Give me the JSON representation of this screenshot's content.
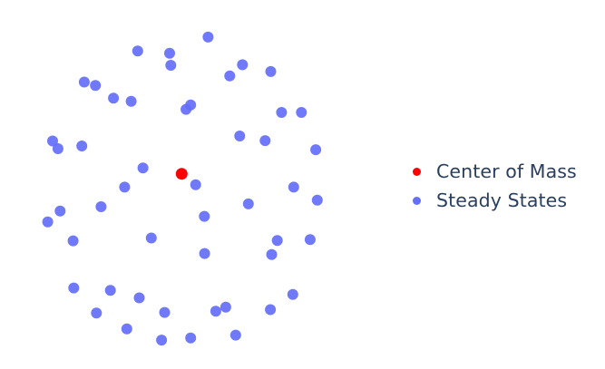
{
  "chart_data": {
    "type": "scatter",
    "title": "",
    "xlabel": "",
    "ylabel": "",
    "axes_visible": false,
    "grid": false,
    "legend_position": "right",
    "xlim": [
      0,
      1
    ],
    "ylim": [
      0,
      1
    ],
    "series": [
      {
        "name": "Steady States",
        "color": "#636efa",
        "points": [
          [
            0.583,
            0.971
          ],
          [
            0.356,
            0.926
          ],
          [
            0.459,
            0.919
          ],
          [
            0.463,
            0.88
          ],
          [
            0.694,
            0.882
          ],
          [
            0.785,
            0.86
          ],
          [
            0.653,
            0.846
          ],
          [
            0.184,
            0.826
          ],
          [
            0.22,
            0.815
          ],
          [
            0.278,
            0.774
          ],
          [
            0.335,
            0.764
          ],
          [
            0.527,
            0.752
          ],
          [
            0.512,
            0.738
          ],
          [
            0.82,
            0.728
          ],
          [
            0.884,
            0.728
          ],
          [
            0.685,
            0.652
          ],
          [
            0.767,
            0.637
          ],
          [
            0.082,
            0.636
          ],
          [
            0.099,
            0.611
          ],
          [
            0.176,
            0.62
          ],
          [
            0.93,
            0.608
          ],
          [
            0.373,
            0.549
          ],
          [
            0.543,
            0.495
          ],
          [
            0.314,
            0.487
          ],
          [
            0.859,
            0.487
          ],
          [
            0.935,
            0.445
          ],
          [
            0.713,
            0.433
          ],
          [
            0.238,
            0.424
          ],
          [
            0.106,
            0.41
          ],
          [
            0.066,
            0.375
          ],
          [
            0.571,
            0.393
          ],
          [
            0.4,
            0.323
          ],
          [
            0.912,
            0.318
          ],
          [
            0.806,
            0.315
          ],
          [
            0.148,
            0.314
          ],
          [
            0.788,
            0.27
          ],
          [
            0.572,
            0.273
          ],
          [
            0.268,
            0.154
          ],
          [
            0.15,
            0.162
          ],
          [
            0.856,
            0.141
          ],
          [
            0.361,
            0.13
          ],
          [
            0.64,
            0.1
          ],
          [
            0.784,
            0.092
          ],
          [
            0.443,
            0.083
          ],
          [
            0.608,
            0.087
          ],
          [
            0.223,
            0.081
          ],
          [
            0.321,
            0.03
          ],
          [
            0.672,
            0.01
          ],
          [
            0.527,
            0.001
          ],
          [
            0.433,
            -0.006
          ]
        ]
      },
      {
        "name": "Center of Mass",
        "color": "#ff0000",
        "points": [
          [
            0.498,
            0.53
          ]
        ]
      }
    ],
    "legend": [
      {
        "label": "Center of Mass",
        "color": "#ff0000"
      },
      {
        "label": "Steady States",
        "color": "#636efa"
      }
    ]
  }
}
